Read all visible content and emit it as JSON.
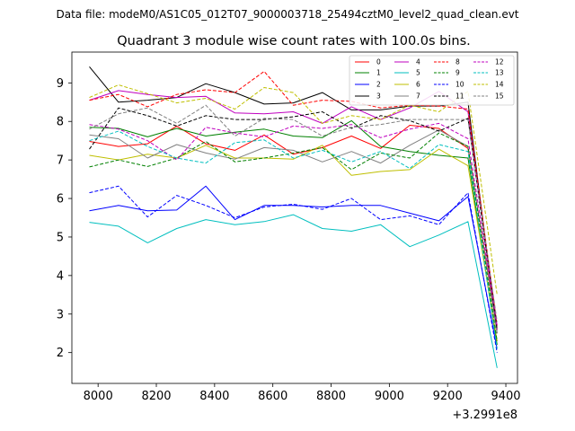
{
  "chart_data": {
    "type": "line",
    "suptitle": "Data file: modeM0/AS1C05_012T07_9000003718_25494cztM0_level2_quad_clean.evt",
    "title": "Quadrant 3 module wise count rates with 100.0s bins.",
    "xlabel": "",
    "ylabel": "",
    "x_offset_label": "+3.2991e8",
    "xlim": [
      7910,
      9440
    ],
    "ylim": [
      1.2,
      9.8
    ],
    "xticks": [
      8000,
      8200,
      8400,
      8600,
      8800,
      9000,
      9200,
      9400
    ],
    "yticks": [
      2,
      3,
      4,
      5,
      6,
      7,
      8,
      9
    ],
    "x": [
      7970,
      8070,
      8170,
      8270,
      8370,
      8470,
      8570,
      8670,
      8770,
      8870,
      8970,
      9070,
      9170,
      9270,
      9370
    ],
    "series": [
      {
        "name": "0",
        "color": "#ff0000",
        "dash": "solid",
        "values": [
          7.48,
          7.35,
          7.42,
          7.88,
          7.42,
          7.25,
          7.65,
          7.15,
          7.32,
          7.62,
          7.3,
          7.9,
          7.82,
          7.3,
          2.6
        ]
      },
      {
        "name": "1",
        "color": "#008000",
        "dash": "solid",
        "values": [
          7.85,
          7.82,
          7.6,
          7.82,
          7.62,
          7.72,
          7.8,
          7.62,
          7.58,
          8.02,
          7.35,
          7.22,
          7.12,
          7.05,
          2.2
        ]
      },
      {
        "name": "2",
        "color": "#0000ff",
        "dash": "solid",
        "values": [
          5.68,
          5.82,
          5.68,
          5.7,
          6.32,
          5.45,
          5.82,
          5.82,
          5.78,
          5.82,
          5.82,
          5.62,
          5.42,
          6.05,
          2.1
        ]
      },
      {
        "name": "3",
        "color": "#000000",
        "dash": "solid",
        "values": [
          9.42,
          8.5,
          8.55,
          8.62,
          8.98,
          8.75,
          8.45,
          8.48,
          8.75,
          8.3,
          8.3,
          8.4,
          8.4,
          8.5,
          2.5
        ]
      },
      {
        "name": "4",
        "color": "#bf00bf",
        "dash": "solid",
        "values": [
          8.55,
          8.8,
          8.7,
          8.62,
          8.65,
          8.22,
          8.2,
          8.25,
          7.95,
          8.38,
          8.05,
          8.35,
          8.78,
          8.25,
          2.6
        ]
      },
      {
        "name": "5",
        "color": "#00bfbf",
        "dash": "solid",
        "values": [
          5.38,
          5.28,
          4.85,
          5.22,
          5.45,
          5.32,
          5.4,
          5.58,
          5.22,
          5.15,
          5.32,
          4.75,
          5.05,
          5.4,
          1.6
        ]
      },
      {
        "name": "6",
        "color": "#bfbf00",
        "dash": "solid",
        "values": [
          7.12,
          7.0,
          7.15,
          7.05,
          7.38,
          7.05,
          7.05,
          7.02,
          7.38,
          6.6,
          6.7,
          6.75,
          7.28,
          6.85,
          2.3
        ]
      },
      {
        "name": "7",
        "color": "#808080",
        "dash": "solid",
        "values": [
          7.65,
          7.55,
          7.05,
          7.4,
          7.18,
          7.02,
          7.32,
          7.25,
          6.95,
          7.22,
          6.92,
          7.38,
          7.78,
          7.35,
          2.5
        ]
      },
      {
        "name": "8",
        "color": "#ff0000",
        "dash": "dashed",
        "values": [
          8.55,
          8.7,
          8.38,
          8.7,
          8.82,
          8.75,
          9.3,
          8.42,
          8.55,
          8.52,
          8.35,
          8.42,
          8.4,
          8.32,
          2.7
        ]
      },
      {
        "name": "9",
        "color": "#008000",
        "dash": "dashed",
        "values": [
          6.82,
          7.0,
          6.83,
          7.05,
          7.48,
          6.95,
          7.05,
          7.18,
          7.32,
          6.75,
          7.18,
          7.05,
          7.7,
          7.35,
          2.3
        ]
      },
      {
        "name": "10",
        "color": "#0000ff",
        "dash": "dashed",
        "values": [
          6.15,
          6.32,
          5.52,
          6.08,
          5.82,
          5.5,
          5.78,
          5.85,
          5.72,
          6.0,
          5.45,
          5.55,
          5.32,
          6.15,
          2.0
        ]
      },
      {
        "name": "11",
        "color": "#000000",
        "dash": "dashed",
        "values": [
          7.28,
          8.35,
          8.15,
          7.88,
          8.15,
          8.05,
          8.05,
          8.12,
          8.25,
          7.82,
          8.15,
          8.02,
          7.75,
          8.08,
          2.6
        ]
      },
      {
        "name": "12",
        "color": "#bf00bf",
        "dash": "dashed",
        "values": [
          7.92,
          7.8,
          7.5,
          7.0,
          7.85,
          7.7,
          7.6,
          7.88,
          7.82,
          7.92,
          7.58,
          7.8,
          7.95,
          7.55,
          2.7
        ]
      },
      {
        "name": "13",
        "color": "#00bfbf",
        "dash": "dashed",
        "values": [
          7.5,
          7.75,
          7.35,
          7.05,
          6.92,
          7.45,
          7.52,
          7.05,
          7.25,
          6.95,
          7.22,
          6.78,
          7.4,
          7.22,
          2.1
        ]
      },
      {
        "name": "14",
        "color": "#bfbf00",
        "dash": "dashed",
        "values": [
          8.62,
          8.95,
          8.72,
          8.48,
          8.6,
          8.32,
          8.88,
          8.75,
          7.95,
          8.15,
          8.05,
          8.42,
          8.25,
          8.78,
          3.5
        ]
      },
      {
        "name": "15",
        "color": "#808080",
        "dash": "dashed",
        "values": [
          7.8,
          8.2,
          8.35,
          7.95,
          8.42,
          7.62,
          8.08,
          8.05,
          7.62,
          7.85,
          7.92,
          8.05,
          8.05,
          8.05,
          2.8
        ]
      }
    ]
  }
}
